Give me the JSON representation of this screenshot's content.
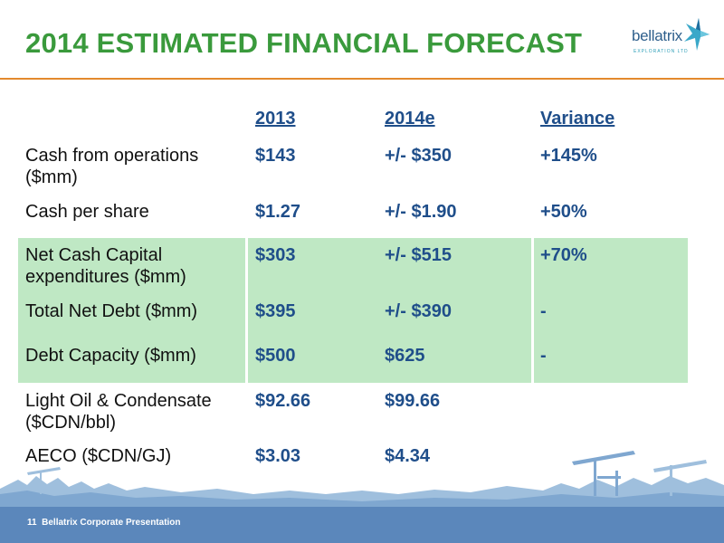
{
  "slide": {
    "title": "2014 ESTIMATED FINANCIAL FORECAST",
    "logo": {
      "brand": "bellatrix",
      "subtitle": "EXPLORATION LTD"
    },
    "columns": [
      "2013",
      "2014e",
      "Variance"
    ],
    "rows": [
      {
        "label": "Cash from operations ($mm)",
        "y2013": "$143",
        "y2014": "+/- $350",
        "variance": "+145%"
      },
      {
        "label": "Cash per share",
        "y2013": "$1.27",
        "y2014": "+/- $1.90",
        "variance": "+50%"
      },
      {
        "label": "Net Cash Capital expenditures ($mm)",
        "y2013": "$303",
        "y2014": "+/- $515",
        "variance": "+70%"
      },
      {
        "label": "Total Net Debt ($mm)",
        "y2013": "$395",
        "y2014": "+/- $390",
        "variance": "-"
      },
      {
        "label": "Debt Capacity ($mm)",
        "y2013": "$500",
        "y2014": "$625",
        "variance": "-"
      },
      {
        "label": "Light Oil & Condensate ($CDN/bbl)",
        "y2013": "$92.66",
        "y2014": "$99.66",
        "variance": ""
      },
      {
        "label": "AECO ($CDN/GJ)",
        "y2013": "$3.03",
        "y2014": "$4.34",
        "variance": ""
      }
    ],
    "footer": {
      "page": "11",
      "text": "Bellatrix Corporate Presentation"
    }
  },
  "colors": {
    "title": "#3a9a3c",
    "accent_rule": "#e3892d",
    "values": "#1f4e8a",
    "highlight": "#bfe8c4",
    "footer": "#5b87bb"
  }
}
